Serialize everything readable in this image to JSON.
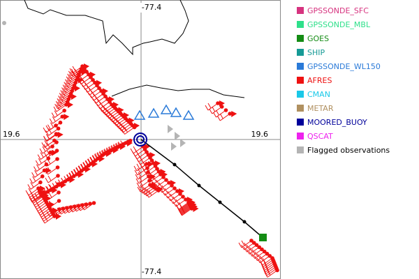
{
  "map": {
    "axis_labels": {
      "top": "-77.4",
      "bottom": "-77.4",
      "left": "19.6",
      "right": "19.6"
    },
    "legend": [
      {
        "label": "GPSSONDE_SFC",
        "color": "#d6337f",
        "text_color": "#d6337f"
      },
      {
        "label": "GPSSONDE_MBL",
        "color": "#2ee08a",
        "text_color": "#2ee08a"
      },
      {
        "label": "GOES",
        "color": "#148c14",
        "text_color": "#148c14"
      },
      {
        "label": "SHIP",
        "color": "#169a96",
        "text_color": "#169a96"
      },
      {
        "label": "GPSSONDE_WL150",
        "color": "#2a7ad8",
        "text_color": "#2a7ad8"
      },
      {
        "label": "AFRES",
        "color": "#ee1111",
        "text_color": "#ee1111"
      },
      {
        "label": "CMAN",
        "color": "#1ac8e8",
        "text_color": "#1ac8e8"
      },
      {
        "label": "METAR",
        "color": "#b09060",
        "text_color": "#b09060"
      },
      {
        "label": "MOORED_BUOY",
        "color": "#00009a",
        "text_color": "#00009a"
      },
      {
        "label": "QSCAT",
        "color": "#ee22ee",
        "text_color": "#ee22ee"
      },
      {
        "label": "Flagged observations",
        "color": "#b4b4b4",
        "text_color": "#000000"
      }
    ]
  }
}
